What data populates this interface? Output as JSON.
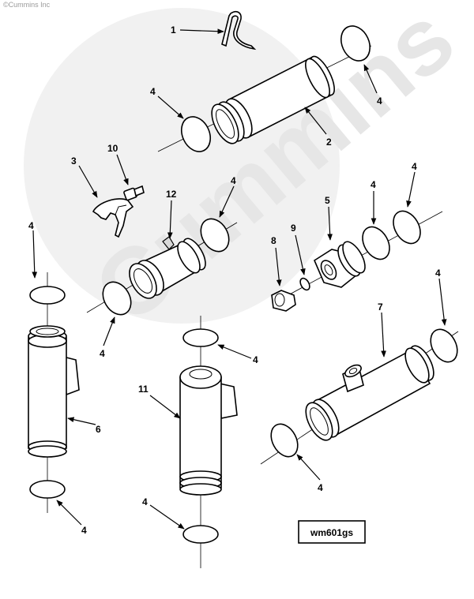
{
  "copyright": "©Cummins Inc",
  "watermark": "Cummins",
  "figure_code": "wm601gs",
  "callouts": {
    "c1": "1",
    "c2": "2",
    "c3": "3",
    "c4a": "4",
    "c4b": "4",
    "c4c": "4",
    "c4d": "4",
    "c4e": "4",
    "c4f": "4",
    "c4g": "4",
    "c4h": "4",
    "c4i": "4",
    "c4j": "4",
    "c4k": "4",
    "c4l": "4",
    "c4m": "4",
    "c4n": "4",
    "c5": "5",
    "c6": "6",
    "c7": "7",
    "c8": "8",
    "c9": "9",
    "c10": "10",
    "c11": "11",
    "c12": "12"
  }
}
